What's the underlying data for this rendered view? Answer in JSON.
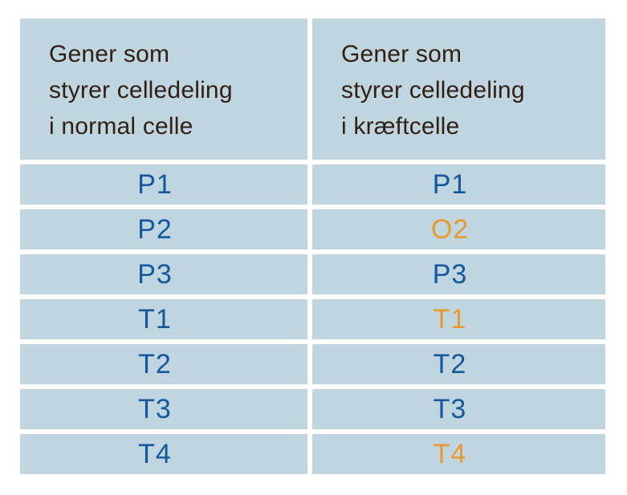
{
  "colors": {
    "cell-bg": "#bfd5e0",
    "gap-color": "#ffffff",
    "header-text": "#301f12",
    "gene-normal": "#16589c",
    "gene-mutated": "#e9992d"
  },
  "table": {
    "headers": [
      {
        "id": "normal-cell",
        "label": "Gener som\nstyrer celledeling\ni normal celle"
      },
      {
        "id": "cancer-cell",
        "label": "Gener som\nstyrer celledeling\ni kræftcelle"
      }
    ],
    "rows": [
      {
        "normal": {
          "text": "P1",
          "state": "normal"
        },
        "cancer": {
          "text": "P1",
          "state": "normal"
        }
      },
      {
        "normal": {
          "text": "P2",
          "state": "normal"
        },
        "cancer": {
          "text": "O2",
          "state": "mutated"
        }
      },
      {
        "normal": {
          "text": "P3",
          "state": "normal"
        },
        "cancer": {
          "text": "P3",
          "state": "normal"
        }
      },
      {
        "normal": {
          "text": "T1",
          "state": "normal"
        },
        "cancer": {
          "text": "T1",
          "state": "mutated"
        }
      },
      {
        "normal": {
          "text": "T2",
          "state": "normal"
        },
        "cancer": {
          "text": "T2",
          "state": "normal"
        }
      },
      {
        "normal": {
          "text": "T3",
          "state": "normal"
        },
        "cancer": {
          "text": "T3",
          "state": "normal"
        }
      },
      {
        "normal": {
          "text": "T4",
          "state": "normal"
        },
        "cancer": {
          "text": "T4",
          "state": "mutated"
        }
      }
    ]
  },
  "chart_data": {
    "type": "table",
    "title": "",
    "columns": [
      "Gener som styrer celledeling i normal celle",
      "Gener som styrer celledeling i kræftcelle"
    ],
    "rows": [
      [
        "P1",
        "P1"
      ],
      [
        "P2",
        "O2"
      ],
      [
        "P3",
        "P3"
      ],
      [
        "T1",
        "T1"
      ],
      [
        "T2",
        "T2"
      ],
      [
        "T3",
        "T3"
      ],
      [
        "T4",
        "T4"
      ]
    ],
    "highlighted_cells_column2": [
      "O2",
      "T1",
      "T4"
    ],
    "highlight_color": "#e9992d",
    "normal_text_color": "#16589c"
  }
}
